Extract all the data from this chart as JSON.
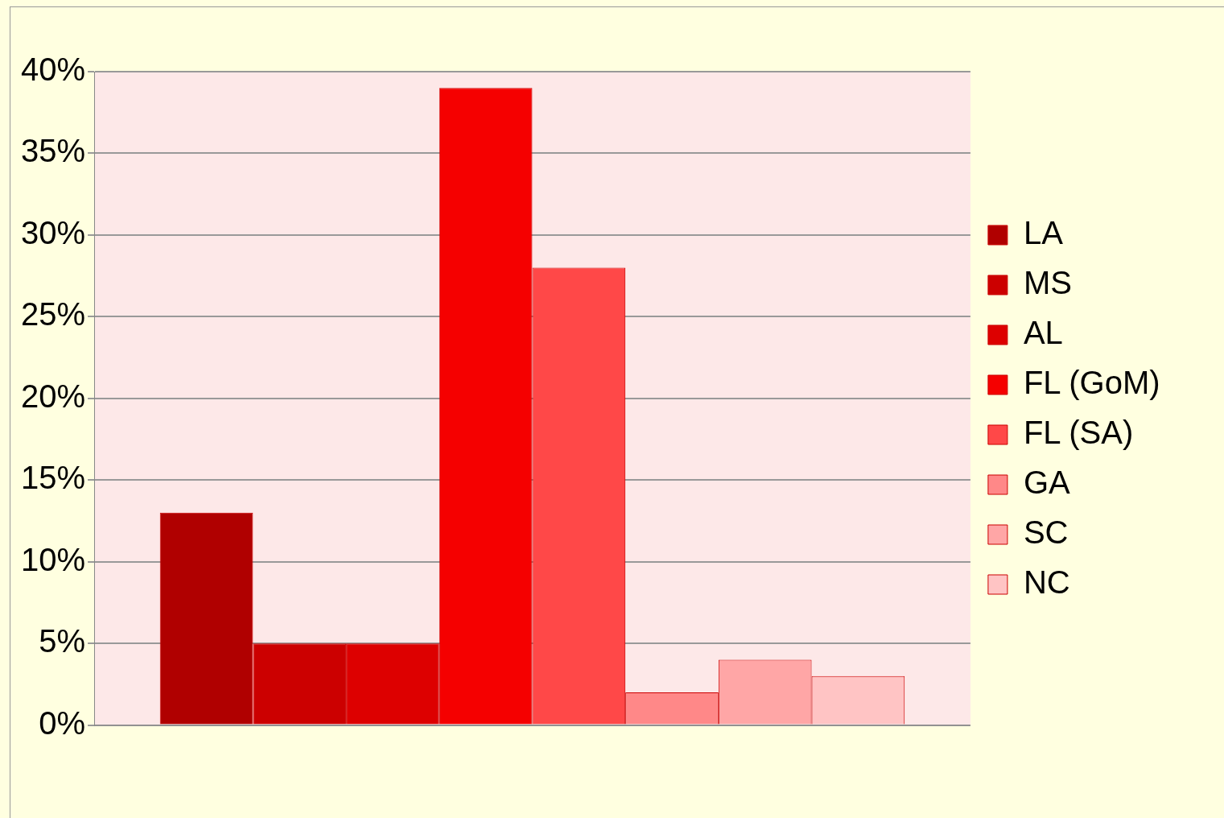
{
  "chart_data": {
    "type": "bar",
    "categories": [
      null
    ],
    "series": [
      {
        "name": "LA",
        "color": "#b00000",
        "values": [
          13
        ]
      },
      {
        "name": "MS",
        "color": "#cc0000",
        "values": [
          5
        ]
      },
      {
        "name": "AL",
        "color": "#dd0000",
        "values": [
          5
        ]
      },
      {
        "name": "FL (GoM)",
        "color": "#f50000",
        "values": [
          39
        ]
      },
      {
        "name": "FL (SA)",
        "color": "#ff4848",
        "values": [
          28
        ]
      },
      {
        "name": "GA",
        "color": "#ff8888",
        "values": [
          2
        ]
      },
      {
        "name": "SC",
        "color": "#ffa6a6",
        "values": [
          4
        ]
      },
      {
        "name": "NC",
        "color": "#ffc4c4",
        "values": [
          3
        ]
      }
    ],
    "ylim": [
      0,
      40
    ],
    "yticks": [
      {
        "value": 0,
        "label": "0%"
      },
      {
        "value": 5,
        "label": "5%"
      },
      {
        "value": 10,
        "label": "10%"
      },
      {
        "value": 15,
        "label": "15%"
      },
      {
        "value": 20,
        "label": "20%"
      },
      {
        "value": 25,
        "label": "25%"
      },
      {
        "value": 30,
        "label": "30%"
      },
      {
        "value": 35,
        "label": "35%"
      },
      {
        "value": 40,
        "label": "40%"
      }
    ],
    "grid": "y",
    "legend": "right"
  }
}
